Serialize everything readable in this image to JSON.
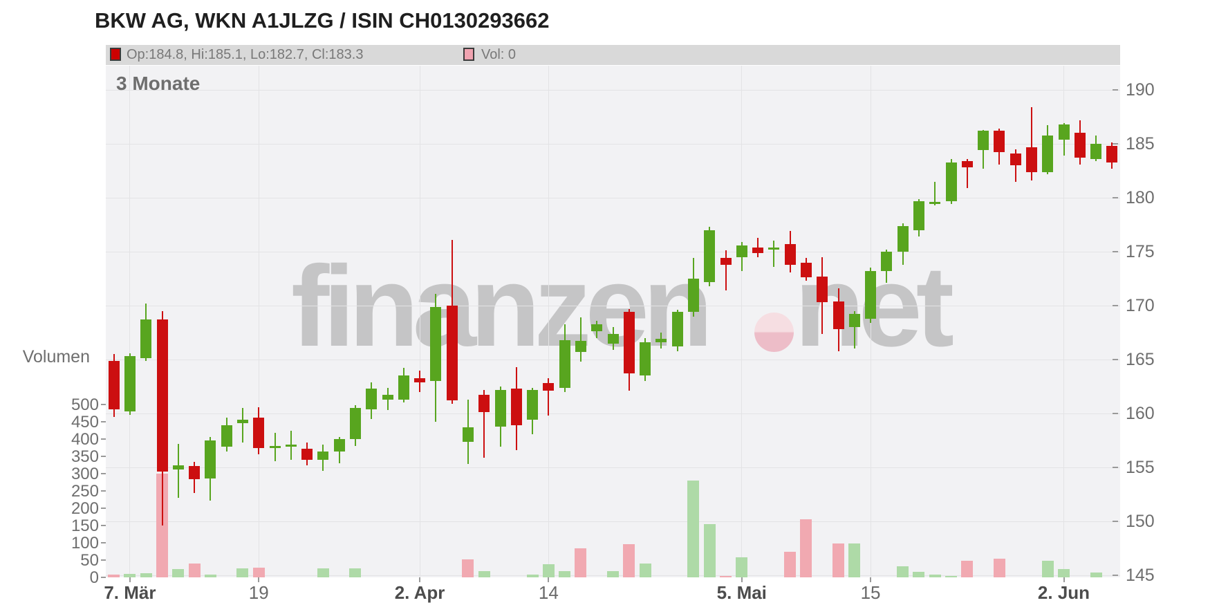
{
  "title": "BKW AG, WKN A1JLZG / ISIN CH0130293662",
  "legend": {
    "ohlc_swatch_color": "#cc0000",
    "ohlc_label": "Op:184.8, Hi:185.1, Lo:182.7, Cl:183.3",
    "vol_swatch_color": "#f0a3b0",
    "vol_label": "Vol: 0"
  },
  "period_label": "3 Monate",
  "watermark": {
    "part1": "finanzen",
    "part2": "net",
    "dot_color": "#edbdc8"
  },
  "volume_axis": {
    "title": "Volumen",
    "ticks": [
      0,
      50,
      100,
      150,
      200,
      250,
      300,
      350,
      400,
      450,
      500
    ]
  },
  "price_axis_ticks": [
    145,
    150,
    155,
    160,
    165,
    170,
    175,
    180,
    185,
    190
  ],
  "colors": {
    "candle_up": "#58a51f",
    "candle_down": "#cc0f10",
    "volume_up": "#aedaa7",
    "volume_down": "#f1a9b1",
    "plot_background": "#f2f2f4",
    "gridline": "#e3e3e5",
    "legend_bar": "#d9d9d9",
    "watermark": "#c5c5c6"
  },
  "chart_data": {
    "type": "candlestick",
    "title": "BKW AG share price with volume, 3 months (candlestick + volume bars)",
    "price_axis": {
      "min": 145,
      "max": 190,
      "step": 5,
      "side": "right"
    },
    "volume_axis": {
      "min": 0,
      "max": 500,
      "step": 50,
      "side": "left"
    },
    "x_labels": [
      {
        "index": 1,
        "text": "7. Mär",
        "bold": true
      },
      {
        "index": 9,
        "text": "19",
        "bold": false
      },
      {
        "index": 19,
        "text": "2. Apr",
        "bold": true
      },
      {
        "index": 27,
        "text": "14",
        "bold": false
      },
      {
        "index": 39,
        "text": "5. Mai",
        "bold": true
      },
      {
        "index": 47,
        "text": "15",
        "bold": false
      },
      {
        "index": 59,
        "text": "2. Jun",
        "bold": true
      }
    ],
    "grid": true,
    "candle_fields": [
      "open",
      "high",
      "low",
      "close",
      "volume",
      "volume_color(g=green,p=pink)"
    ],
    "candles": [
      [
        164.9,
        165.5,
        159.7,
        160.4,
        8,
        "p"
      ],
      [
        160.2,
        165.6,
        159.9,
        165.3,
        10,
        "g"
      ],
      [
        165.1,
        170.2,
        164.9,
        168.7,
        12,
        "g"
      ],
      [
        168.7,
        169.5,
        149.6,
        154.6,
        300,
        "p"
      ],
      [
        154.8,
        157.2,
        152.2,
        155.2,
        24,
        "g"
      ],
      [
        155.1,
        155.5,
        152.6,
        153.9,
        40,
        "p"
      ],
      [
        154.0,
        157.8,
        151.9,
        157.5,
        8,
        "g"
      ],
      [
        156.9,
        159.6,
        156.5,
        158.9,
        0,
        ""
      ],
      [
        159.1,
        160.5,
        157.3,
        159.4,
        26,
        "g"
      ],
      [
        159.6,
        160.6,
        156.2,
        156.8,
        28,
        "p"
      ],
      [
        156.9,
        158.2,
        155.6,
        157.0,
        0,
        ""
      ],
      [
        157.0,
        158.4,
        155.7,
        157.1,
        0,
        ""
      ],
      [
        156.7,
        157.3,
        155.2,
        155.7,
        0,
        ""
      ],
      [
        155.7,
        157.1,
        154.7,
        156.5,
        26,
        "g"
      ],
      [
        156.5,
        157.8,
        155.4,
        157.6,
        0,
        ""
      ],
      [
        157.6,
        160.8,
        157.0,
        160.5,
        26,
        "g"
      ],
      [
        160.4,
        162.9,
        159.5,
        162.3,
        0,
        ""
      ],
      [
        161.3,
        162.4,
        160.3,
        161.7,
        0,
        ""
      ],
      [
        161.3,
        164.2,
        161.0,
        163.5,
        0,
        ""
      ],
      [
        163.3,
        164.0,
        162.0,
        162.9,
        0,
        ""
      ],
      [
        163.0,
        171.1,
        159.2,
        169.9,
        0,
        ""
      ],
      [
        170.0,
        176.1,
        160.9,
        161.2,
        0,
        ""
      ],
      [
        157.4,
        161.3,
        155.3,
        158.7,
        52,
        "p"
      ],
      [
        161.7,
        162.2,
        155.9,
        160.1,
        18,
        "g"
      ],
      [
        158.8,
        162.5,
        156.9,
        162.2,
        0,
        ""
      ],
      [
        162.3,
        164.3,
        156.6,
        158.9,
        0,
        ""
      ],
      [
        159.4,
        162.4,
        158.1,
        162.2,
        8,
        "g"
      ],
      [
        162.8,
        163.3,
        159.8,
        162.1,
        38,
        "g"
      ],
      [
        162.4,
        168.3,
        162.0,
        166.8,
        18,
        "g"
      ],
      [
        165.7,
        168.9,
        164.8,
        166.7,
        84,
        "p"
      ],
      [
        167.6,
        168.6,
        167.0,
        168.3,
        0,
        ""
      ],
      [
        166.5,
        168.0,
        165.9,
        167.4,
        18,
        "g"
      ],
      [
        169.4,
        169.7,
        162.1,
        163.7,
        96,
        "p"
      ],
      [
        163.5,
        167.0,
        163.0,
        166.6,
        40,
        "g"
      ],
      [
        166.6,
        167.5,
        166.0,
        166.9,
        0,
        ""
      ],
      [
        166.2,
        169.6,
        165.8,
        169.4,
        0,
        ""
      ],
      [
        169.4,
        174.4,
        169.0,
        172.5,
        280,
        "g"
      ],
      [
        172.2,
        177.3,
        171.8,
        177.0,
        155,
        "g"
      ],
      [
        174.4,
        175.1,
        171.4,
        173.8,
        5,
        "p"
      ],
      [
        174.5,
        175.9,
        173.2,
        175.6,
        58,
        "g"
      ],
      [
        175.4,
        176.3,
        174.5,
        174.9,
        0,
        ""
      ],
      [
        175.3,
        176.0,
        173.6,
        175.4,
        0,
        ""
      ],
      [
        175.7,
        176.9,
        173.1,
        173.8,
        74,
        "p"
      ],
      [
        174.0,
        174.4,
        172.3,
        172.6,
        168,
        "p"
      ],
      [
        172.7,
        174.5,
        167.4,
        170.3,
        0,
        ""
      ],
      [
        170.4,
        171.6,
        165.8,
        167.8,
        98,
        "p"
      ],
      [
        168.0,
        169.5,
        166.0,
        169.2,
        98,
        "g"
      ],
      [
        168.8,
        173.5,
        168.4,
        173.2,
        0,
        ""
      ],
      [
        173.2,
        175.2,
        172.1,
        175.0,
        0,
        ""
      ],
      [
        175.0,
        177.6,
        173.8,
        177.4,
        32,
        "g"
      ],
      [
        177.0,
        179.9,
        176.4,
        179.7,
        16,
        "g"
      ],
      [
        179.5,
        181.5,
        179.3,
        179.6,
        8,
        "g"
      ],
      [
        179.7,
        183.6,
        179.4,
        183.3,
        5,
        "g"
      ],
      [
        183.4,
        183.6,
        180.9,
        182.8,
        48,
        "p"
      ],
      [
        184.4,
        186.3,
        182.7,
        186.2,
        0,
        ""
      ],
      [
        186.2,
        186.4,
        183.1,
        184.2,
        54,
        "p"
      ],
      [
        184.1,
        184.5,
        181.5,
        183.0,
        0,
        ""
      ],
      [
        184.7,
        188.4,
        181.6,
        182.4,
        0,
        ""
      ],
      [
        182.4,
        186.7,
        182.2,
        185.8,
        48,
        "g"
      ],
      [
        185.4,
        186.9,
        183.9,
        186.8,
        24,
        "g"
      ],
      [
        186.0,
        187.2,
        183.1,
        183.7,
        0,
        ""
      ],
      [
        183.6,
        185.8,
        183.4,
        185.0,
        14,
        "g"
      ],
      [
        184.8,
        185.1,
        182.7,
        183.3,
        0,
        ""
      ]
    ]
  }
}
